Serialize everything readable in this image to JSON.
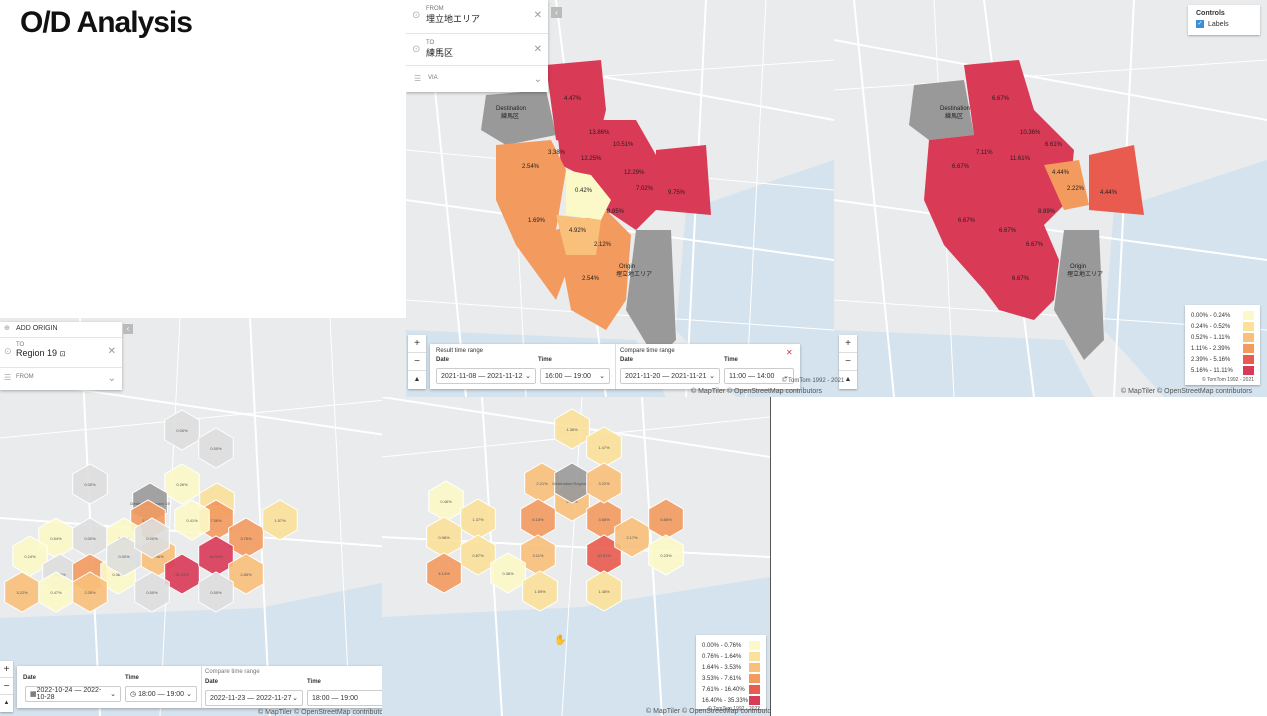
{
  "page": {
    "title": "O/D Analysis"
  },
  "top_panel": {
    "from_label": "FROM",
    "from_value": "埋立地エリア",
    "to_label": "TO",
    "to_value": "練馬区",
    "via_label": "VIA"
  },
  "left_panel": {
    "add_origin": "ADD ORIGIN",
    "to_label": "TO",
    "to_value": "Region 19",
    "from_label": "FROM"
  },
  "controls": {
    "title": "Controls",
    "labels": "Labels"
  },
  "zoom": {
    "in": "+",
    "out": "−",
    "compass": "▲"
  },
  "top_time_bar": {
    "result_caption": "Result time range",
    "compare_caption": "Compare time range",
    "date_label": "Date",
    "time_label": "Time",
    "result_date": "2021-11-08 — 2021-11-12",
    "result_time": "16:00 — 19:00",
    "compare_date": "2021-11-20 — 2021-11-21",
    "compare_time": "11:00 — 14:00"
  },
  "bottom_time_bar": {
    "compare_caption": "Compare time range",
    "date_label": "Date",
    "time_label": "Time",
    "result_date": "2022-10-24 — 2022-10-28",
    "result_time": "18:00 — 19:00",
    "compare_date": "2022-11-23 — 2022-11-27",
    "compare_time": "18:00 — 19:00"
  },
  "legend_top": {
    "items": [
      "0.00% - 0.24%",
      "0.24% - 0.52%",
      "0.52% - 1.11%",
      "1.11% - 2.39%",
      "2.39% - 5.16%",
      "5.16% - 11.11%"
    ],
    "colors": [
      "#fcf9c8",
      "#fbe199",
      "#f8c07a",
      "#f39a5e",
      "#ea5b4f",
      "#d93a56"
    ],
    "credit": "© TomTom 1992 - 2021"
  },
  "legend_bottom": {
    "items": [
      "0.00% - 0.76%",
      "0.76% - 1.64%",
      "1.64% - 3.53%",
      "3.53% - 7.61%",
      "7.61% - 16.40%",
      "16.40% - 35.33%"
    ],
    "colors": [
      "#fcf9c8",
      "#fbe199",
      "#f8c07a",
      "#f39a5e",
      "#ea5b4f",
      "#d93a56"
    ],
    "credit": "© TomTom 1992 - 2022"
  },
  "attribution": "© MapTiler © OpenStreetMap contributors",
  "tomtom_top": "© TomTom 1992 - 2021",
  "map_labels": {
    "destination": "Destination",
    "nerima": "練馬区",
    "origin": "Origin",
    "umetate": "埋立地エリア",
    "dest_region": "Destination Region 19"
  },
  "region_values_left": [
    "4.47%",
    "13.86%",
    "10.51%",
    "12.25%",
    "3.38%",
    "2.54%",
    "0.42%",
    "12.29%",
    "7.02%",
    "9.75%",
    "1.69%",
    "4.92%",
    "8.85%",
    "2.12%",
    "2.54%"
  ],
  "region_values_right": [
    "6.67%",
    "10.36%",
    "6.61%",
    "7.11%",
    "11.61%",
    "6.67%",
    "4.44%",
    "2.22%",
    "4.44%",
    "8.89%",
    "6.67%",
    "6.67%",
    "6.67%",
    "6.67%"
  ],
  "hex_values_left": [
    "0.00%",
    "0.00%",
    "0.00%",
    "0.26%",
    "2.56%",
    "1.45%",
    "5.48%",
    "7.56%",
    "3.78%",
    "1.57%",
    "0.54%",
    "0.00%",
    "0.52%",
    "2.06%",
    "0.41%",
    "0.24%",
    "0.00%",
    "4.16%",
    "35.33%",
    "18.04%",
    "2.85%",
    "0.36%",
    "0.00%",
    "3.22%",
    "0.47%",
    "2.05%",
    "0.00%",
    "0.00%",
    "0.00%"
  ],
  "hex_values_right": [
    "1.36%",
    "1.47%",
    "2.21%",
    "2.67%",
    "0.46%",
    "6.18%",
    "1.37%",
    "3.58%",
    "1.89%",
    "3.22%",
    "0.98%",
    "3.11%",
    "10.91%",
    "2.17%",
    "6.66%",
    "0.87%",
    "4.14%",
    "0.38%",
    "1.59%",
    "1.48%",
    "0.23%"
  ]
}
